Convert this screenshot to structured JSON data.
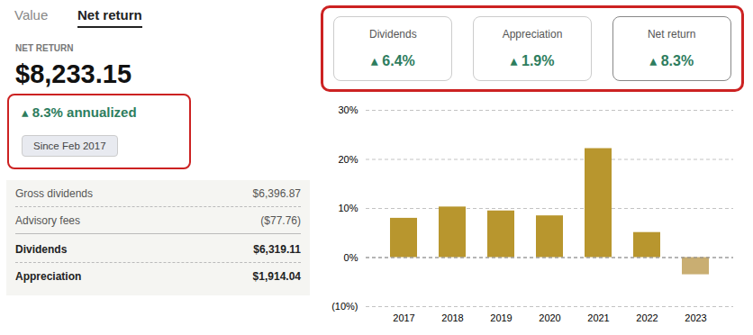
{
  "chart_data": {
    "type": "bar",
    "categories": [
      "2017",
      "2018",
      "2019",
      "2020",
      "2021",
      "2022",
      "2023"
    ],
    "values": [
      8.0,
      10.3,
      9.5,
      8.5,
      22.2,
      5.1,
      -3.5
    ],
    "colors": [
      "#b8962e",
      "#b8962e",
      "#b8962e",
      "#b8962e",
      "#b8962e",
      "#b8962e",
      "#c9ae72"
    ],
    "ylim": [
      -10,
      30
    ],
    "yticks": [
      {
        "value": -10,
        "label": "(10%)"
      },
      {
        "value": 0,
        "label": "0%"
      },
      {
        "value": 10,
        "label": "10%"
      },
      {
        "value": 20,
        "label": "20%"
      },
      {
        "value": 30,
        "label": "30%"
      }
    ],
    "grid": true,
    "annotations": [
      "Value",
      "Net return",
      "NET RETURN",
      "$8,233.15",
      "▴ 8.3% annualized",
      "Since Feb 2017",
      "Dividends",
      "▴ 6.4%",
      "Appreciation",
      "▴ 1.9%",
      "Net return",
      "▴ 8.3%",
      "Gross dividends",
      "$6,396.87",
      "Advisory fees",
      "($77.76)",
      "Dividends",
      "$6,319.11",
      "Appreciation",
      "$1,914.04"
    ]
  }
}
